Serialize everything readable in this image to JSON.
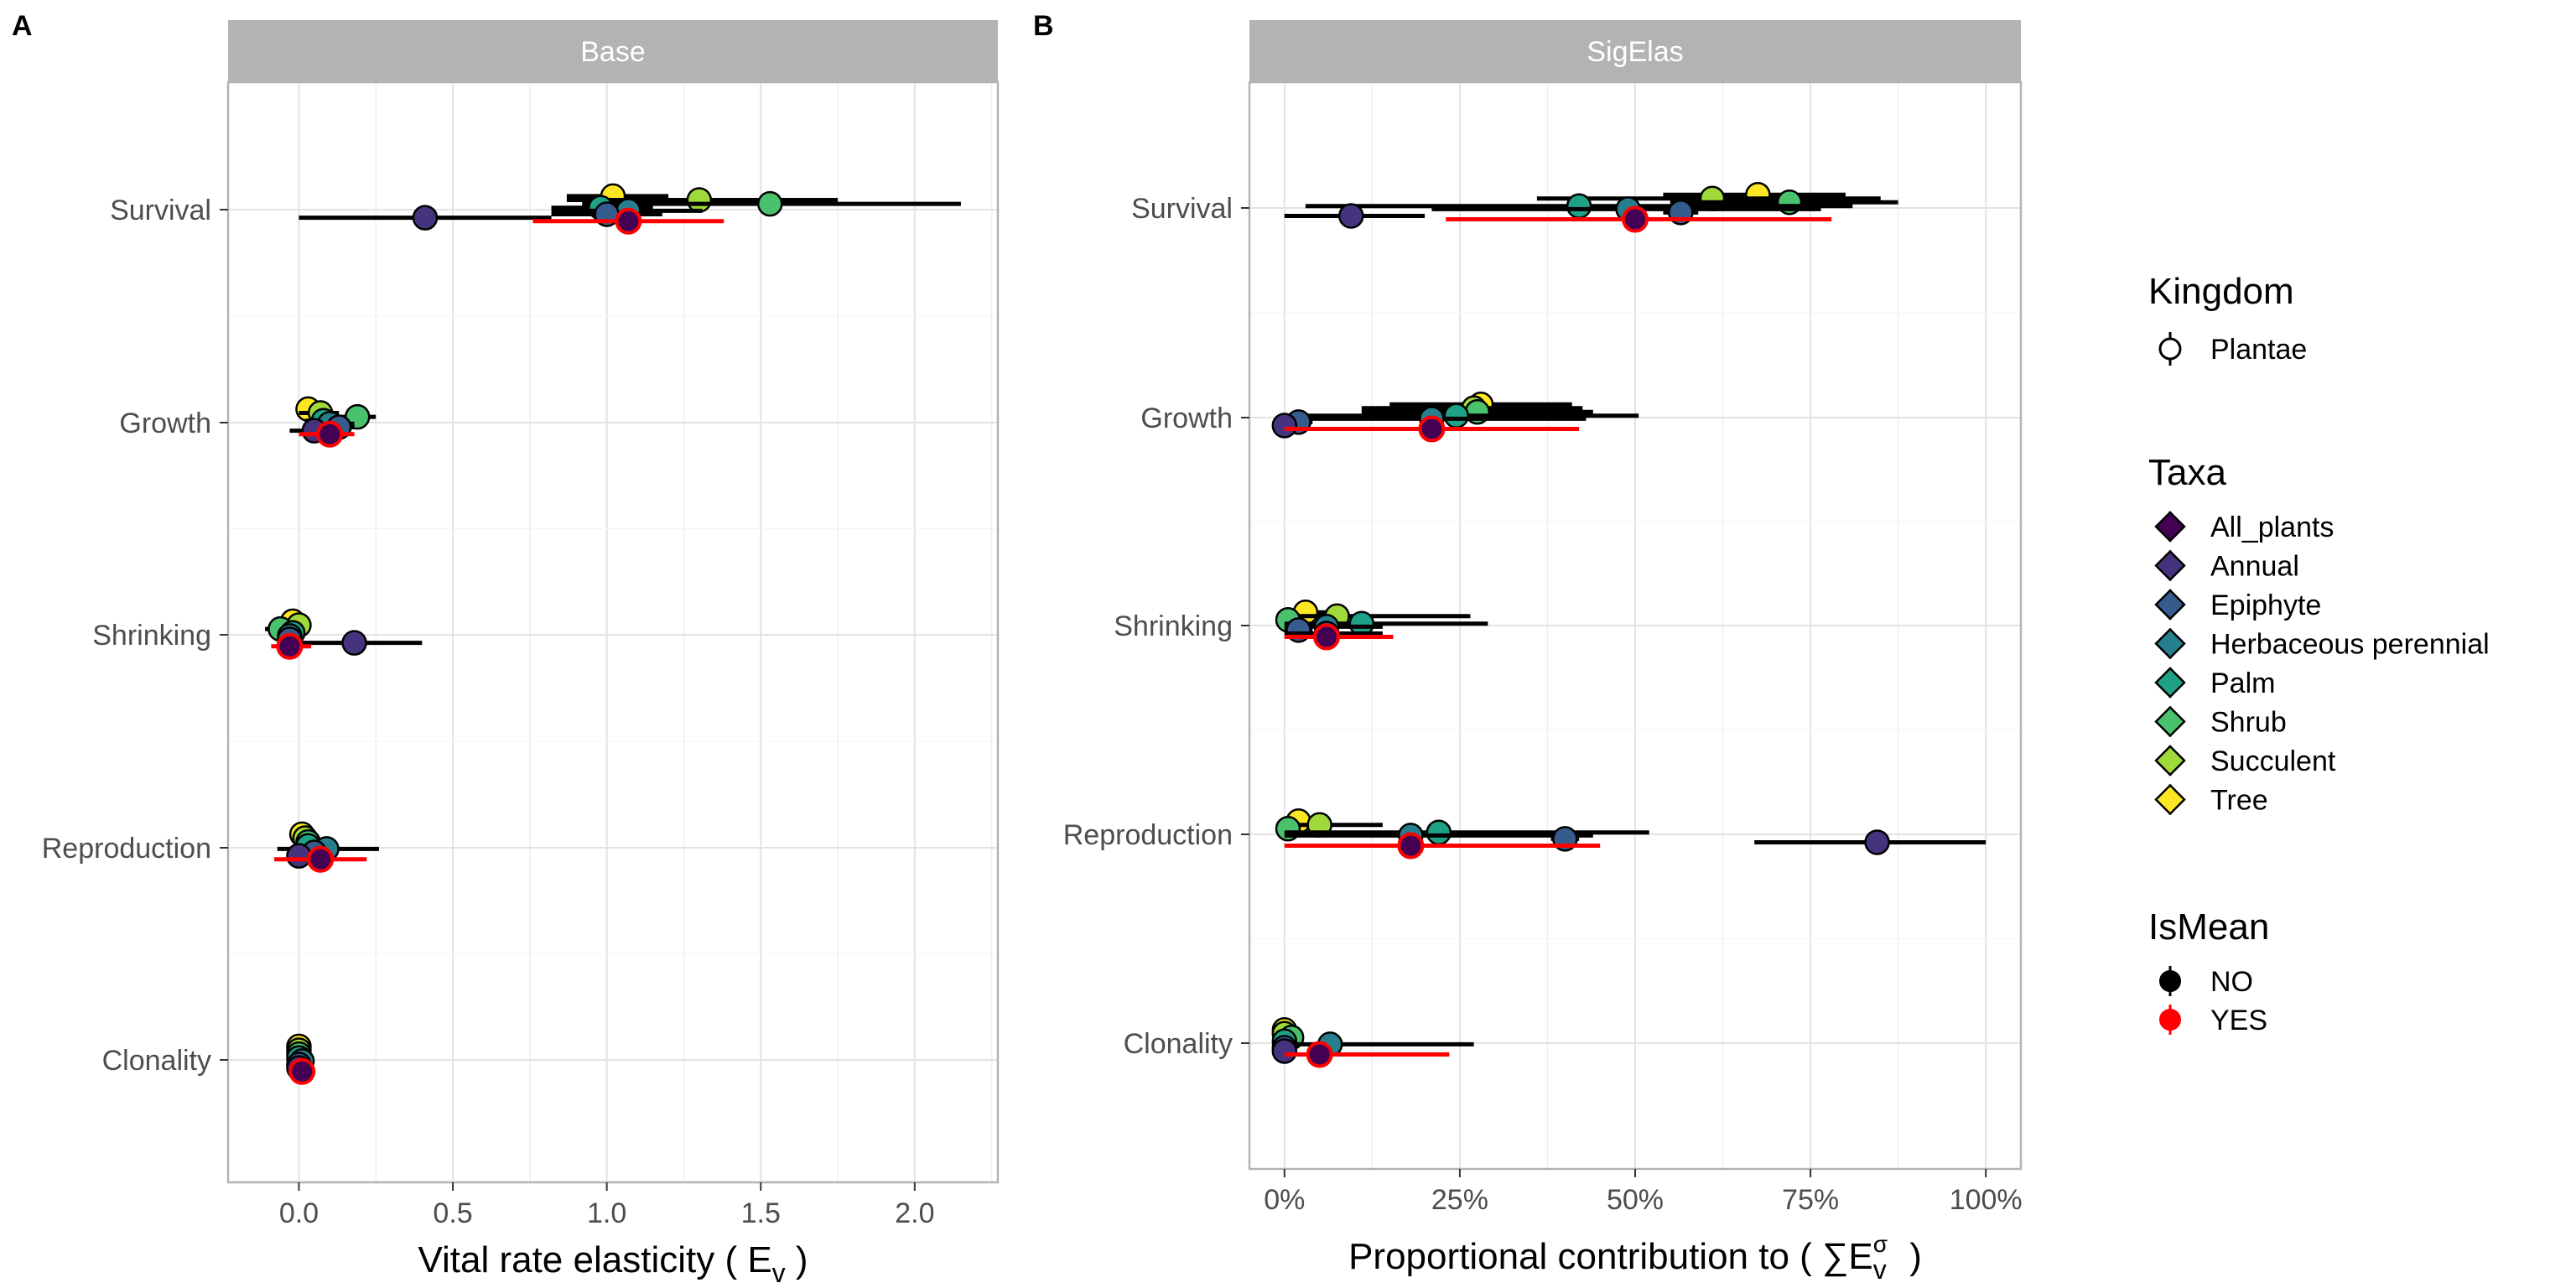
{
  "chart_data": [
    {
      "type": "scatter",
      "panel_letter": "A",
      "title": "Base",
      "xlabel": "Vital rate elasticity ( E",
      "xlabel_sub": "v",
      "xlabel_end": " )",
      "xlim": [
        -0.23,
        2.27
      ],
      "xticks": [
        0.0,
        0.5,
        1.0,
        1.5,
        2.0
      ],
      "xtick_labels": [
        "0.0",
        "0.5",
        "1.0",
        "1.5",
        "2.0"
      ],
      "x_minor": [
        0.25,
        0.75,
        1.25,
        1.75,
        2.25
      ],
      "categories": [
        "Survival",
        "Growth",
        "Shrinking",
        "Reproduction",
        "Clonality"
      ],
      "points": [
        {
          "vital_rate": "Survival",
          "taxon": "Tree",
          "x": 1.02,
          "lo": 0.87,
          "hi": 1.2,
          "offset": -0.35,
          "is_mean": "NO"
        },
        {
          "vital_rate": "Survival",
          "taxon": "Succulent",
          "x": 1.3,
          "lo": 0.87,
          "hi": 1.75,
          "offset": -0.25,
          "is_mean": "NO"
        },
        {
          "vital_rate": "Survival",
          "taxon": "Shrub",
          "x": 1.53,
          "lo": 0.92,
          "hi": 2.15,
          "offset": -0.15,
          "is_mean": "NO"
        },
        {
          "vital_rate": "Survival",
          "taxon": "Palm",
          "x": 0.98,
          "lo": 0.82,
          "hi": 1.15,
          "offset": -0.05,
          "is_mean": "NO"
        },
        {
          "vital_rate": "Survival",
          "taxon": "Herbaceous perennial",
          "x": 1.07,
          "lo": 0.82,
          "hi": 1.31,
          "offset": 0.03,
          "is_mean": "NO"
        },
        {
          "vital_rate": "Survival",
          "taxon": "Epiphyte",
          "x": 1.0,
          "lo": 0.82,
          "hi": 1.18,
          "offset": 0.12,
          "is_mean": "NO"
        },
        {
          "vital_rate": "Survival",
          "taxon": "Annual",
          "x": 0.41,
          "lo": 0.0,
          "hi": 0.82,
          "offset": 0.21,
          "is_mean": "NO"
        },
        {
          "vital_rate": "Survival",
          "taxon": "All_plants",
          "x": 1.07,
          "lo": 0.76,
          "hi": 1.38,
          "offset": 0.3,
          "is_mean": "YES"
        },
        {
          "vital_rate": "Growth",
          "taxon": "Tree",
          "x": 0.03,
          "lo": 0.0,
          "hi": 0.07,
          "offset": -0.35,
          "is_mean": "NO"
        },
        {
          "vital_rate": "Growth",
          "taxon": "Succulent",
          "x": 0.07,
          "lo": 0.0,
          "hi": 0.13,
          "offset": -0.25,
          "is_mean": "NO"
        },
        {
          "vital_rate": "Growth",
          "taxon": "Shrub",
          "x": 0.19,
          "lo": 0.13,
          "hi": 0.25,
          "offset": -0.15,
          "is_mean": "NO"
        },
        {
          "vital_rate": "Growth",
          "taxon": "Palm",
          "x": 0.08,
          "lo": 0.02,
          "hi": 0.15,
          "offset": -0.05,
          "is_mean": "NO"
        },
        {
          "vital_rate": "Growth",
          "taxon": "Herbaceous perennial",
          "x": 0.1,
          "lo": 0.02,
          "hi": 0.18,
          "offset": 0.03,
          "is_mean": "NO"
        },
        {
          "vital_rate": "Growth",
          "taxon": "Epiphyte",
          "x": 0.13,
          "lo": 0.07,
          "hi": 0.18,
          "offset": 0.12,
          "is_mean": "NO"
        },
        {
          "vital_rate": "Growth",
          "taxon": "Annual",
          "x": 0.05,
          "lo": -0.03,
          "hi": 0.12,
          "offset": 0.21,
          "is_mean": "NO"
        },
        {
          "vital_rate": "Growth",
          "taxon": "All_plants",
          "x": 0.1,
          "lo": 0.0,
          "hi": 0.18,
          "offset": 0.3,
          "is_mean": "YES"
        },
        {
          "vital_rate": "Shrinking",
          "taxon": "Tree",
          "x": -0.02,
          "lo": -0.05,
          "hi": 0.01,
          "offset": -0.35,
          "is_mean": "NO"
        },
        {
          "vital_rate": "Shrinking",
          "taxon": "Succulent",
          "x": 0.0,
          "lo": -0.03,
          "hi": 0.03,
          "offset": -0.25,
          "is_mean": "NO"
        },
        {
          "vital_rate": "Shrinking",
          "taxon": "Shrub",
          "x": -0.06,
          "lo": -0.11,
          "hi": -0.01,
          "offset": -0.15,
          "is_mean": "NO"
        },
        {
          "vital_rate": "Shrinking",
          "taxon": "Palm",
          "x": -0.02,
          "lo": -0.06,
          "hi": 0.02,
          "offset": -0.05,
          "is_mean": "NO"
        },
        {
          "vital_rate": "Shrinking",
          "taxon": "Herbaceous perennial",
          "x": -0.03,
          "lo": -0.07,
          "hi": 0.01,
          "offset": 0.03,
          "is_mean": "NO"
        },
        {
          "vital_rate": "Shrinking",
          "taxon": "Epiphyte",
          "x": -0.03,
          "lo": -0.07,
          "hi": 0.01,
          "offset": 0.12,
          "is_mean": "NO"
        },
        {
          "vital_rate": "Shrinking",
          "taxon": "Annual",
          "x": 0.18,
          "lo": -0.03,
          "hi": 0.4,
          "offset": 0.21,
          "is_mean": "NO"
        },
        {
          "vital_rate": "Shrinking",
          "taxon": "All_plants",
          "x": -0.03,
          "lo": -0.09,
          "hi": 0.04,
          "offset": 0.3,
          "is_mean": "YES"
        },
        {
          "vital_rate": "Reproduction",
          "taxon": "Tree",
          "x": 0.01,
          "lo": -0.02,
          "hi": 0.04,
          "offset": -0.35,
          "is_mean": "NO"
        },
        {
          "vital_rate": "Reproduction",
          "taxon": "Succulent",
          "x": 0.02,
          "lo": -0.01,
          "hi": 0.05,
          "offset": -0.25,
          "is_mean": "NO"
        },
        {
          "vital_rate": "Reproduction",
          "taxon": "Shrub",
          "x": 0.03,
          "lo": 0.0,
          "hi": 0.06,
          "offset": -0.15,
          "is_mean": "NO"
        },
        {
          "vital_rate": "Reproduction",
          "taxon": "Palm",
          "x": 0.03,
          "lo": 0.0,
          "hi": 0.06,
          "offset": -0.05,
          "is_mean": "NO"
        },
        {
          "vital_rate": "Reproduction",
          "taxon": "Herbaceous perennial",
          "x": 0.09,
          "lo": -0.07,
          "hi": 0.26,
          "offset": 0.03,
          "is_mean": "NO"
        },
        {
          "vital_rate": "Reproduction",
          "taxon": "Epiphyte",
          "x": 0.05,
          "lo": 0.01,
          "hi": 0.09,
          "offset": 0.12,
          "is_mean": "NO"
        },
        {
          "vital_rate": "Reproduction",
          "taxon": "Annual",
          "x": 0.0,
          "lo": -0.04,
          "hi": 0.04,
          "offset": 0.21,
          "is_mean": "NO"
        },
        {
          "vital_rate": "Reproduction",
          "taxon": "All_plants",
          "x": 0.07,
          "lo": -0.08,
          "hi": 0.22,
          "offset": 0.3,
          "is_mean": "YES"
        },
        {
          "vital_rate": "Clonality",
          "taxon": "Tree",
          "x": 0.0,
          "lo": -0.01,
          "hi": 0.01,
          "offset": -0.35,
          "is_mean": "NO"
        },
        {
          "vital_rate": "Clonality",
          "taxon": "Succulent",
          "x": 0.0,
          "lo": -0.01,
          "hi": 0.01,
          "offset": -0.25,
          "is_mean": "NO"
        },
        {
          "vital_rate": "Clonality",
          "taxon": "Shrub",
          "x": 0.0,
          "lo": -0.01,
          "hi": 0.01,
          "offset": -0.15,
          "is_mean": "NO"
        },
        {
          "vital_rate": "Clonality",
          "taxon": "Palm",
          "x": 0.0,
          "lo": -0.02,
          "hi": 0.02,
          "offset": -0.05,
          "is_mean": "NO"
        },
        {
          "vital_rate": "Clonality",
          "taxon": "Herbaceous perennial",
          "x": 0.01,
          "lo": -0.02,
          "hi": 0.03,
          "offset": 0.03,
          "is_mean": "NO"
        },
        {
          "vital_rate": "Clonality",
          "taxon": "Epiphyte",
          "x": 0.0,
          "lo": -0.02,
          "hi": 0.02,
          "offset": 0.12,
          "is_mean": "NO"
        },
        {
          "vital_rate": "Clonality",
          "taxon": "Annual",
          "x": 0.0,
          "lo": -0.01,
          "hi": 0.01,
          "offset": 0.21,
          "is_mean": "NO"
        },
        {
          "vital_rate": "Clonality",
          "taxon": "All_plants",
          "x": 0.01,
          "lo": -0.01,
          "hi": 0.02,
          "offset": 0.3,
          "is_mean": "YES"
        }
      ]
    },
    {
      "type": "scatter",
      "panel_letter": "B",
      "title": "SigElas",
      "xlabel": "Proportional contribution to ( ∑E",
      "xlabel_sub": "v",
      "xlabel_sup": "σ",
      "xlabel_end": " )",
      "xlim": [
        -0.05,
        1.05
      ],
      "xticks": [
        0.0,
        0.25,
        0.5,
        0.75,
        1.0
      ],
      "xtick_labels": [
        "0%",
        "25%",
        "50%",
        "75%",
        "100%"
      ],
      "x_minor": [
        0.125,
        0.375,
        0.625,
        0.875
      ],
      "categories": [
        "Survival",
        "Growth",
        "Shrinking",
        "Reproduction",
        "Clonality"
      ],
      "points": [
        {
          "vital_rate": "Survival",
          "taxon": "Tree",
          "x": 0.675,
          "lo": 0.54,
          "hi": 0.8,
          "offset": -0.35,
          "is_mean": "NO"
        },
        {
          "vital_rate": "Survival",
          "taxon": "Succulent",
          "x": 0.61,
          "lo": 0.36,
          "hi": 0.85,
          "offset": -0.25,
          "is_mean": "NO"
        },
        {
          "vital_rate": "Survival",
          "taxon": "Shrub",
          "x": 0.72,
          "lo": 0.55,
          "hi": 0.875,
          "offset": -0.15,
          "is_mean": "NO"
        },
        {
          "vital_rate": "Survival",
          "taxon": "Palm",
          "x": 0.42,
          "lo": 0.03,
          "hi": 0.81,
          "offset": -0.05,
          "is_mean": "NO"
        },
        {
          "vital_rate": "Survival",
          "taxon": "Herbaceous perennial",
          "x": 0.49,
          "lo": 0.21,
          "hi": 0.765,
          "offset": 0.03,
          "is_mean": "NO"
        },
        {
          "vital_rate": "Survival",
          "taxon": "Epiphyte",
          "x": 0.565,
          "lo": 0.54,
          "hi": 0.59,
          "offset": 0.12,
          "is_mean": "NO"
        },
        {
          "vital_rate": "Survival",
          "taxon": "Annual",
          "x": 0.095,
          "lo": 0.0,
          "hi": 0.2,
          "offset": 0.21,
          "is_mean": "NO"
        },
        {
          "vital_rate": "Survival",
          "taxon": "All_plants",
          "x": 0.5,
          "lo": 0.23,
          "hi": 0.78,
          "offset": 0.3,
          "is_mean": "YES"
        },
        {
          "vital_rate": "Growth",
          "taxon": "Tree",
          "x": 0.28,
          "lo": 0.15,
          "hi": 0.41,
          "offset": -0.35,
          "is_mean": "NO"
        },
        {
          "vital_rate": "Growth",
          "taxon": "Succulent",
          "x": 0.27,
          "lo": 0.11,
          "hi": 0.425,
          "offset": -0.25,
          "is_mean": "NO"
        },
        {
          "vital_rate": "Growth",
          "taxon": "Shrub",
          "x": 0.275,
          "lo": 0.11,
          "hi": 0.44,
          "offset": -0.15,
          "is_mean": "NO"
        },
        {
          "vital_rate": "Growth",
          "taxon": "Palm",
          "x": 0.245,
          "lo": 0.0,
          "hi": 0.505,
          "offset": -0.05,
          "is_mean": "NO"
        },
        {
          "vital_rate": "Growth",
          "taxon": "Herbaceous perennial",
          "x": 0.21,
          "lo": 0.0,
          "hi": 0.43,
          "offset": 0.03,
          "is_mean": "NO"
        },
        {
          "vital_rate": "Growth",
          "taxon": "Epiphyte",
          "x": 0.02,
          "lo": 0.0,
          "hi": 0.04,
          "offset": 0.12,
          "is_mean": "NO"
        },
        {
          "vital_rate": "Growth",
          "taxon": "Annual",
          "x": 0.0,
          "lo": 0.0,
          "hi": 0.0,
          "offset": 0.21,
          "is_mean": "NO"
        },
        {
          "vital_rate": "Growth",
          "taxon": "All_plants",
          "x": 0.21,
          "lo": 0.0,
          "hi": 0.42,
          "offset": 0.3,
          "is_mean": "YES"
        },
        {
          "vital_rate": "Shrinking",
          "taxon": "Tree",
          "x": 0.03,
          "lo": 0.0,
          "hi": 0.06,
          "offset": -0.35,
          "is_mean": "NO"
        },
        {
          "vital_rate": "Shrinking",
          "taxon": "Succulent",
          "x": 0.075,
          "lo": 0.0,
          "hi": 0.265,
          "offset": -0.25,
          "is_mean": "NO"
        },
        {
          "vital_rate": "Shrinking",
          "taxon": "Shrub",
          "x": 0.005,
          "lo": 0.0,
          "hi": 0.01,
          "offset": -0.15,
          "is_mean": "NO"
        },
        {
          "vital_rate": "Shrinking",
          "taxon": "Palm",
          "x": 0.11,
          "lo": 0.0,
          "hi": 0.29,
          "offset": -0.05,
          "is_mean": "NO"
        },
        {
          "vital_rate": "Shrinking",
          "taxon": "Herbaceous perennial",
          "x": 0.06,
          "lo": 0.0,
          "hi": 0.14,
          "offset": 0.03,
          "is_mean": "NO"
        },
        {
          "vital_rate": "Shrinking",
          "taxon": "Epiphyte",
          "x": 0.02,
          "lo": 0.0,
          "hi": 0.04,
          "offset": 0.12,
          "is_mean": "NO"
        },
        {
          "vital_rate": "Shrinking",
          "taxon": "Annual",
          "x": 0.06,
          "lo": 0.0,
          "hi": 0.14,
          "offset": 0.21,
          "is_mean": "NO"
        },
        {
          "vital_rate": "Shrinking",
          "taxon": "All_plants",
          "x": 0.06,
          "lo": 0.0,
          "hi": 0.155,
          "offset": 0.3,
          "is_mean": "YES"
        },
        {
          "vital_rate": "Reproduction",
          "taxon": "Tree",
          "x": 0.02,
          "lo": 0.0,
          "hi": 0.04,
          "offset": -0.35,
          "is_mean": "NO"
        },
        {
          "vital_rate": "Reproduction",
          "taxon": "Succulent",
          "x": 0.05,
          "lo": 0.0,
          "hi": 0.14,
          "offset": -0.25,
          "is_mean": "NO"
        },
        {
          "vital_rate": "Reproduction",
          "taxon": "Shrub",
          "x": 0.005,
          "lo": 0.0,
          "hi": 0.01,
          "offset": -0.15,
          "is_mean": "NO"
        },
        {
          "vital_rate": "Reproduction",
          "taxon": "Palm",
          "x": 0.22,
          "lo": 0.0,
          "hi": 0.52,
          "offset": -0.05,
          "is_mean": "NO"
        },
        {
          "vital_rate": "Reproduction",
          "taxon": "Herbaceous perennial",
          "x": 0.18,
          "lo": 0.0,
          "hi": 0.44,
          "offset": 0.03,
          "is_mean": "NO"
        },
        {
          "vital_rate": "Reproduction",
          "taxon": "Epiphyte",
          "x": 0.4,
          "lo": 0.38,
          "hi": 0.42,
          "offset": 0.12,
          "is_mean": "NO"
        },
        {
          "vital_rate": "Reproduction",
          "taxon": "Annual",
          "x": 0.845,
          "lo": 0.67,
          "hi": 1.0,
          "offset": 0.21,
          "is_mean": "NO"
        },
        {
          "vital_rate": "Reproduction",
          "taxon": "All_plants",
          "x": 0.18,
          "lo": 0.0,
          "hi": 0.45,
          "offset": 0.3,
          "is_mean": "YES"
        },
        {
          "vital_rate": "Clonality",
          "taxon": "Tree",
          "x": 0.0,
          "lo": 0.0,
          "hi": 0.0,
          "offset": -0.35,
          "is_mean": "NO"
        },
        {
          "vital_rate": "Clonality",
          "taxon": "Succulent",
          "x": 0.0,
          "lo": 0.0,
          "hi": 0.0,
          "offset": -0.25,
          "is_mean": "NO"
        },
        {
          "vital_rate": "Clonality",
          "taxon": "Shrub",
          "x": 0.01,
          "lo": 0.0,
          "hi": 0.02,
          "offset": -0.15,
          "is_mean": "NO"
        },
        {
          "vital_rate": "Clonality",
          "taxon": "Palm",
          "x": 0.0,
          "lo": 0.0,
          "hi": 0.0,
          "offset": -0.05,
          "is_mean": "NO"
        },
        {
          "vital_rate": "Clonality",
          "taxon": "Herbaceous perennial",
          "x": 0.065,
          "lo": 0.0,
          "hi": 0.27,
          "offset": 0.03,
          "is_mean": "NO"
        },
        {
          "vital_rate": "Clonality",
          "taxon": "Epiphyte",
          "x": 0.0,
          "lo": 0.0,
          "hi": 0.0,
          "offset": 0.12,
          "is_mean": "NO"
        },
        {
          "vital_rate": "Clonality",
          "taxon": "Annual",
          "x": 0.0,
          "lo": 0.0,
          "hi": 0.0,
          "offset": 0.21,
          "is_mean": "NO"
        },
        {
          "vital_rate": "Clonality",
          "taxon": "All_plants",
          "x": 0.05,
          "lo": 0.0,
          "hi": 0.235,
          "offset": 0.3,
          "is_mean": "YES"
        }
      ]
    }
  ],
  "taxa_colors": {
    "All_plants": "#440154",
    "Annual": "#46337E",
    "Epiphyte": "#365C8D",
    "Herbaceous perennial": "#277F8E",
    "Palm": "#1FA187",
    "Shrub": "#4AC16D",
    "Succulent": "#9FDA3A",
    "Tree": "#FDE725"
  },
  "legend": {
    "kingdom": {
      "title": "Kingdom",
      "items": [
        "Plantae"
      ]
    },
    "taxa": {
      "title": "Taxa",
      "items": [
        "All_plants",
        "Annual",
        "Epiphyte",
        "Herbaceous perennial",
        "Palm",
        "Shrub",
        "Succulent",
        "Tree"
      ]
    },
    "ismean": {
      "title": "IsMean",
      "items": [
        {
          "label": "NO",
          "color": "#000000"
        },
        {
          "label": "YES",
          "color": "#FF0000"
        }
      ]
    }
  },
  "style": {
    "strip_fill": "#B3B3B3",
    "grid_color": "#E3E3E3",
    "panel_border": "#B3B3B3",
    "mean_color": "#FF0000"
  }
}
